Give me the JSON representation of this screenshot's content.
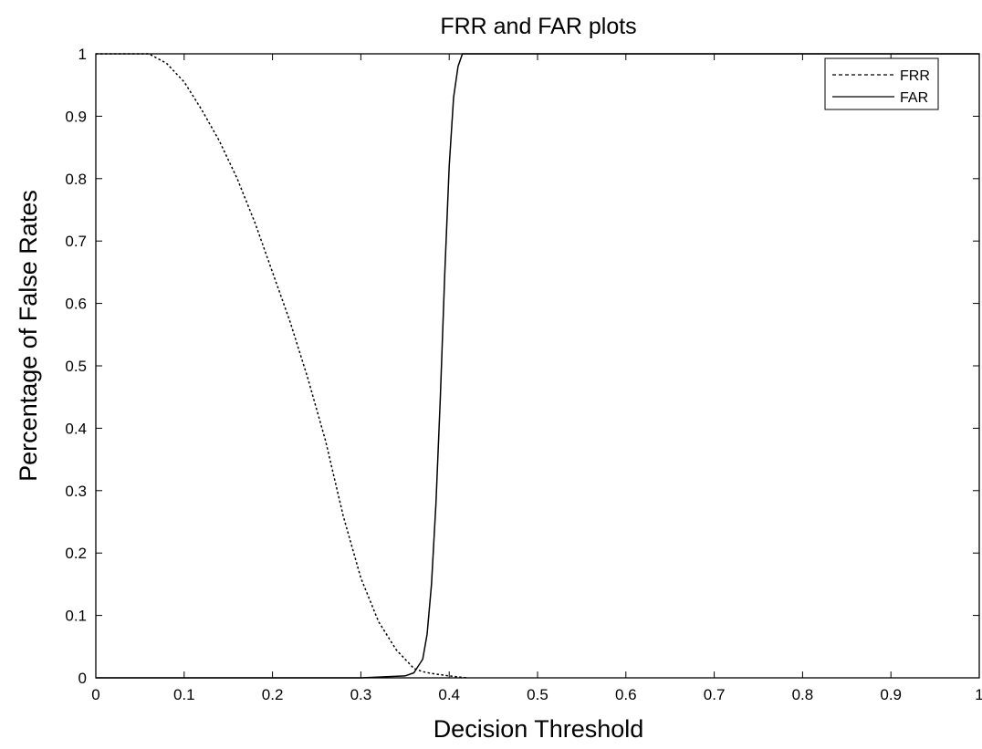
{
  "chart_data": {
    "type": "line",
    "title": "FRR and FAR plots",
    "xlabel": "Decision Threshold",
    "ylabel": "Percentage of False Rates",
    "xlim": [
      0,
      1
    ],
    "ylim": [
      0,
      1
    ],
    "xticks": [
      "0",
      "0.1",
      "0.2",
      "0.3",
      "0.4",
      "0.5",
      "0.6",
      "0.7",
      "0.8",
      "0.9",
      "1"
    ],
    "yticks": [
      "0",
      "0.1",
      "0.2",
      "0.3",
      "0.4",
      "0.5",
      "0.6",
      "0.7",
      "0.8",
      "0.9",
      "1"
    ],
    "grid": false,
    "legend_position": "top-right",
    "series": [
      {
        "name": "FRR",
        "style": "dotted",
        "color": "#000000",
        "x": [
          0,
          0.06,
          0.08,
          0.1,
          0.12,
          0.14,
          0.16,
          0.18,
          0.2,
          0.22,
          0.24,
          0.26,
          0.28,
          0.3,
          0.32,
          0.34,
          0.36,
          0.37,
          0.38,
          0.4,
          0.42
        ],
        "y": [
          1,
          1,
          0.985,
          0.955,
          0.91,
          0.86,
          0.8,
          0.73,
          0.65,
          0.57,
          0.48,
          0.38,
          0.26,
          0.16,
          0.09,
          0.045,
          0.015,
          0.01,
          0.007,
          0.003,
          0
        ]
      },
      {
        "name": "FAR",
        "style": "solid",
        "color": "#000000",
        "x": [
          0,
          0.3,
          0.35,
          0.36,
          0.37,
          0.375,
          0.38,
          0.385,
          0.39,
          0.395,
          0.4,
          0.405,
          0.41,
          0.415,
          0.42,
          1
        ],
        "y": [
          0,
          0,
          0.003,
          0.008,
          0.03,
          0.07,
          0.15,
          0.28,
          0.45,
          0.65,
          0.82,
          0.93,
          0.98,
          1,
          1,
          1
        ]
      }
    ]
  }
}
